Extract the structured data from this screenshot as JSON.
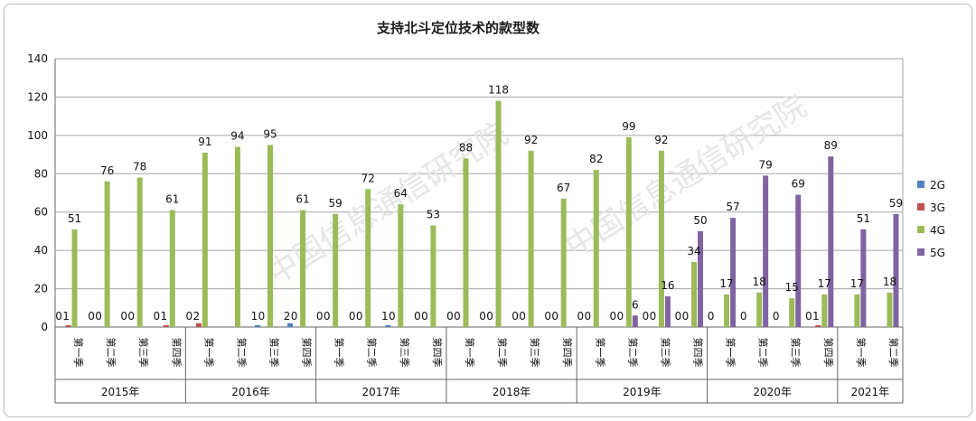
{
  "chart_data": {
    "type": "bar",
    "title": "支持北斗定位技术的款型数",
    "ylim": [
      0,
      140
    ],
    "yticks": [
      0,
      20,
      40,
      60,
      80,
      100,
      120,
      140
    ],
    "grid": true,
    "legend_position": "right",
    "groups": [
      {
        "year": "2015年",
        "quarters": [
          "第一季",
          "第二季",
          "第三季",
          "第四季"
        ]
      },
      {
        "year": "2016年",
        "quarters": [
          "第一季",
          "第二季",
          "第三季",
          "第四季"
        ]
      },
      {
        "year": "2017年",
        "quarters": [
          "第一季",
          "第二季",
          "第三季",
          "第四季"
        ]
      },
      {
        "year": "2018年",
        "quarters": [
          "第一季",
          "第二季",
          "第三季",
          "第四季"
        ]
      },
      {
        "year": "2019年",
        "quarters": [
          "第一季",
          "第二季",
          "第三季",
          "第四季"
        ]
      },
      {
        "year": "2020年",
        "quarters": [
          "第一季",
          "第二季",
          "第三季",
          "第四季"
        ]
      },
      {
        "year": "2021年",
        "quarters": [
          "第一季",
          "第二季"
        ]
      }
    ],
    "series": [
      {
        "name": "2G",
        "color": "#4f81bd",
        "values": [
          0,
          0,
          0,
          0,
          0,
          0,
          1,
          2,
          0,
          0,
          1,
          0,
          0,
          0,
          0,
          0,
          0,
          0,
          0,
          0,
          null,
          null,
          null,
          null,
          null,
          null
        ],
        "labels": [
          "0",
          "0",
          "0",
          "0",
          "0",
          "",
          "1",
          "2",
          "0",
          "0",
          "1",
          "0",
          "0",
          "0",
          "0",
          "0",
          "0",
          "0",
          "0",
          "0",
          "0",
          "0",
          "0",
          "0",
          "",
          ""
        ]
      },
      {
        "name": "3G",
        "color": "#c0504d",
        "values": [
          1,
          0,
          0,
          1,
          2,
          0,
          0,
          0,
          0,
          0,
          0,
          0,
          0,
          0,
          0,
          0,
          0,
          0,
          0,
          0,
          null,
          null,
          null,
          1,
          null,
          null
        ],
        "labels": [
          "1",
          "0",
          "0",
          "1",
          "2",
          "",
          "0",
          "0",
          "0",
          "0",
          "0",
          "0",
          "0",
          "0",
          "0",
          "0",
          "0",
          "0",
          "0",
          "0",
          "",
          "",
          "",
          "1",
          "",
          ""
        ]
      },
      {
        "name": "4G",
        "color": "#9bbb59",
        "values": [
          51,
          76,
          78,
          61,
          91,
          94,
          95,
          61,
          59,
          72,
          64,
          53,
          88,
          118,
          92,
          67,
          82,
          99,
          92,
          34,
          17,
          18,
          15,
          17,
          17,
          18
        ],
        "labels": [
          "51",
          "76",
          "78",
          "61",
          "91",
          "94",
          "95",
          "61",
          "59",
          "72",
          "64",
          "53",
          "88",
          "118",
          "92",
          "67",
          "82",
          "99",
          "92",
          "34",
          "17",
          "18",
          "15",
          "17",
          "17",
          "18"
        ]
      },
      {
        "name": "5G",
        "color": "#8064a2",
        "values": [
          null,
          null,
          null,
          null,
          null,
          null,
          null,
          null,
          null,
          null,
          null,
          null,
          null,
          null,
          null,
          null,
          0,
          6,
          16,
          50,
          57,
          79,
          69,
          89,
          51,
          59
        ],
        "labels": [
          "",
          "",
          "",
          "",
          "",
          "",
          "",
          "",
          "",
          "",
          "",
          "",
          "",
          "",
          "",
          "",
          "",
          "6",
          "16",
          "50",
          "57",
          "79",
          "69",
          "89",
          "51",
          "59"
        ]
      }
    ]
  },
  "watermark": "中国信息通信研究院"
}
